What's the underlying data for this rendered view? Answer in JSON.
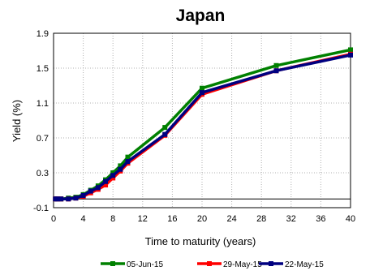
{
  "chart_data": {
    "type": "line",
    "title": "Japan",
    "xlabel": "Time to maturity (years)",
    "ylabel": "Yield (%)",
    "xlim": [
      0,
      40
    ],
    "ylim": [
      -0.1,
      1.9
    ],
    "xticks": [
      0,
      4,
      8,
      12,
      16,
      20,
      24,
      28,
      32,
      36,
      40
    ],
    "yticks": [
      -0.1,
      0.3,
      0.7,
      1.1,
      1.5,
      1.9
    ],
    "ytick_labels": [
      "-0.1",
      "0.3",
      "0.7",
      "1.1",
      "1.5",
      "1.9"
    ],
    "grid": true,
    "legend_position": "bottom",
    "series": [
      {
        "name": "05-Jun-15",
        "color": "#008000",
        "x": [
          0.25,
          0.5,
          1,
          2,
          3,
          4,
          5,
          6,
          7,
          8,
          9,
          10,
          15,
          20,
          30,
          40
        ],
        "y": [
          0.0,
          0.0,
          0.0,
          0.01,
          0.02,
          0.05,
          0.1,
          0.15,
          0.22,
          0.3,
          0.38,
          0.48,
          0.82,
          1.27,
          1.53,
          1.71
        ]
      },
      {
        "name": "29-May-15",
        "color": "#ff0000",
        "x": [
          0.25,
          0.5,
          1,
          2,
          3,
          4,
          5,
          6,
          7,
          8,
          9,
          10,
          15,
          20,
          30,
          40
        ],
        "y": [
          0.0,
          0.0,
          0.0,
          0.0,
          0.01,
          0.03,
          0.07,
          0.11,
          0.16,
          0.24,
          0.32,
          0.41,
          0.73,
          1.2,
          1.47,
          1.66
        ]
      },
      {
        "name": "22-May-15",
        "color": "#000080",
        "x": [
          0.25,
          0.5,
          1,
          2,
          3,
          4,
          5,
          6,
          7,
          8,
          9,
          10,
          15,
          20,
          30,
          40
        ],
        "y": [
          0.0,
          0.0,
          0.0,
          0.0,
          0.01,
          0.04,
          0.09,
          0.13,
          0.2,
          0.27,
          0.34,
          0.43,
          0.74,
          1.22,
          1.47,
          1.65
        ]
      }
    ]
  }
}
